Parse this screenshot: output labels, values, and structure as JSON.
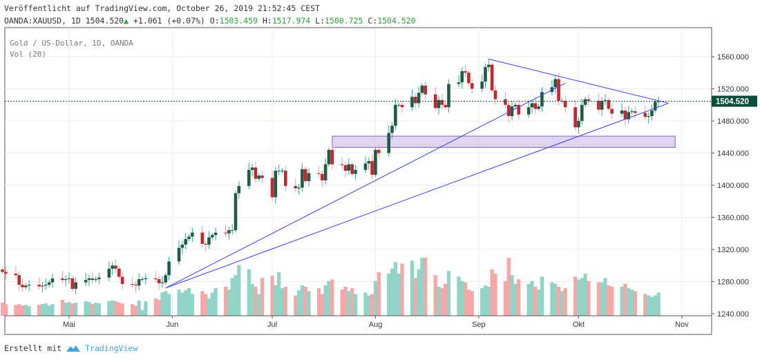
{
  "header": {
    "published": "Veröffentlicht auf TradingView.com, October 26, 2019 21:52:45 CEST",
    "symbol": "OANDA:XAUUSD, 1D",
    "last": "1504.520",
    "change": "+1.061 (+0.07%)",
    "o_label": "O:",
    "o": "1503.459",
    "h_label": "H:",
    "h": "1517.974",
    "l_label": "L:",
    "l": "1500.725",
    "c_label": "C:",
    "c": "1504.520"
  },
  "legend": {
    "title": "Gold  / US-Dollar, 1D, OANDA",
    "volume": "Vol (20)"
  },
  "footer": {
    "created_with": "Erstellt mit",
    "brand": "TradingView"
  },
  "colors": {
    "up": "#1f5c46",
    "down": "#c4262e",
    "up_wick": "#26a69a",
    "down_wick": "#ef9a9a",
    "vol_up": "#8fd4c7",
    "vol_down": "#f7a5a5",
    "trendline": "#3b3bf0",
    "zone_fill": "#d9cdef",
    "zone_border": "#9575cd",
    "price_label": "#0b4d3a"
  },
  "chart_data": {
    "type": "candlestick",
    "title": "Gold / US-Dollar, 1D, OANDA",
    "start_date": "2019-04-11",
    "closes": [
      1292,
      1290,
      1288,
      1276,
      1273,
      1275,
      1276,
      1274,
      1275,
      1276,
      1279,
      1284,
      1282,
      1283,
      1284,
      1271,
      1279,
      1282,
      1284,
      1282,
      1283,
      1285,
      1296,
      1300,
      1296,
      1286,
      1277,
      1276,
      1275,
      1283,
      1283,
      1284,
      1283,
      1278,
      1279,
      1288,
      1305,
      1322,
      1326,
      1333,
      1336,
      1341,
      1327,
      1326,
      1335,
      1338,
      1341,
      1340,
      1344,
      1344,
      1390,
      1399,
      1419,
      1422,
      1408,
      1412,
      1409,
      1385,
      1418,
      1418,
      1418,
      1399,
      1396,
      1397,
      1420,
      1405,
      1415,
      1414,
      1406,
      1426,
      1444,
      1426,
      1425,
      1418,
      1426,
      1414,
      1419,
      1427,
      1430,
      1413,
      1444,
      1440,
      1465,
      1474,
      1500,
      1500,
      1497,
      1510,
      1502,
      1515,
      1524,
      1513,
      1496,
      1506,
      1500,
      1497,
      1526,
      1528,
      1542,
      1540,
      1527,
      1520,
      1529,
      1547,
      1550,
      1518,
      1507,
      1500,
      1486,
      1498,
      1500,
      1488,
      1497,
      1502,
      1495,
      1498,
      1516,
      1522,
      1532,
      1505,
      1505,
      1497,
      1472,
      1480,
      1500,
      1507,
      1505,
      1494,
      1505,
      1506,
      1495,
      1489,
      1493,
      1482,
      1491,
      1492,
      1490,
      1485,
      1486,
      1493,
      1504,
      1504.52
    ],
    "volume_relative": [
      18,
      16,
      15,
      16,
      14,
      15,
      13,
      15,
      16,
      17,
      14,
      16,
      22,
      18,
      19,
      17,
      18,
      20,
      19,
      16,
      18,
      17,
      20,
      21,
      20,
      18,
      17,
      16,
      14,
      21,
      8,
      20,
      24,
      22,
      32,
      34,
      30,
      36,
      32,
      35,
      38,
      30,
      34,
      30,
      24,
      32,
      38,
      40,
      36,
      52,
      56,
      70,
      64,
      44,
      40,
      30,
      52,
      55,
      42,
      60,
      38,
      40,
      28,
      35,
      42,
      40,
      34,
      38,
      30,
      42,
      48,
      50,
      36,
      40,
      34,
      38,
      30,
      32,
      28,
      30,
      48,
      60,
      58,
      65,
      74,
      58,
      72,
      76,
      52,
      64,
      80,
      80,
      56,
      40,
      38,
      44,
      62,
      54,
      48,
      46,
      36,
      34,
      38,
      42,
      40,
      64,
      58,
      48,
      80,
      56,
      44,
      50,
      44,
      48,
      40,
      36,
      54,
      46,
      44,
      40,
      34,
      38,
      54,
      50,
      52,
      58,
      48,
      46,
      46,
      52,
      42,
      40,
      40,
      44,
      38,
      36,
      34,
      30,
      28,
      26,
      28,
      32
    ],
    "y_ticks": [
      "1560.000",
      "1520.000",
      "1480.000",
      "1440.000",
      "1400.000",
      "1360.000",
      "1320.000",
      "1280.000",
      "1240.000"
    ],
    "ylim": [
      1240,
      1560
    ],
    "x_ticks": [
      {
        "label": "Mai",
        "date": "2019-05-01"
      },
      {
        "label": "Jun",
        "date": "2019-06-01"
      },
      {
        "label": "Jul",
        "date": "2019-07-01"
      },
      {
        "label": "Aug",
        "date": "2019-08-01"
      },
      {
        "label": "Sep",
        "date": "2019-09-01"
      },
      {
        "label": "Okt",
        "date": "2019-10-01"
      },
      {
        "label": "Nov",
        "date": "2019-11-01"
      }
    ],
    "last_price_label": "1504.520",
    "trendlines": [
      {
        "from": {
          "date": "2019-05-30",
          "price": 1272
        },
        "to": {
          "date": "2019-09-27",
          "price": 1527
        }
      },
      {
        "from": {
          "date": "2019-05-30",
          "price": 1272
        },
        "to": {
          "date": "2019-10-28",
          "price": 1502
        }
      },
      {
        "from": {
          "date": "2019-09-04",
          "price": 1557
        },
        "to": {
          "date": "2019-10-28",
          "price": 1502
        }
      }
    ],
    "zone": {
      "from_date": "2019-07-19",
      "to_date": "2019-10-30",
      "price_low": 1447,
      "price_high": 1461
    }
  }
}
